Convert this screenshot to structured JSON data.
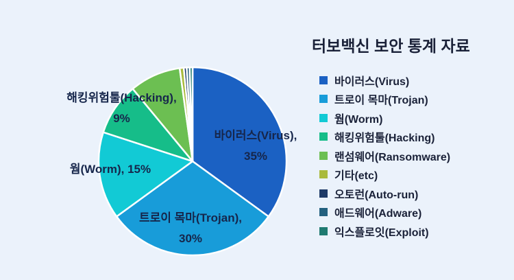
{
  "background_color": "#ebf2fb",
  "title": "터보백신 보안 통계 자료",
  "chart_data": {
    "type": "pie",
    "title": "터보백신 보안 통계 자료",
    "legend_position": "right",
    "start_angle_deg": 0,
    "direction": "clockwise",
    "categories": [
      "바이러스(Virus)",
      "트로이 목마(Trojan)",
      "웜(Worm)",
      "해킹위험툴(Hacking)",
      "랜섬웨어(Ransomware)",
      "기타(etc)",
      "오토런(Auto-run)",
      "애드웨어(Adware)",
      "익스플로잇(Exploit)"
    ],
    "values": [
      35,
      30,
      15,
      9,
      8.8,
      0.7,
      0.5,
      0.5,
      0.5
    ],
    "values_labeled_on_chart": {
      "바이러스(Virus)": 35,
      "트로이 목마(Trojan)": 30,
      "웜(Worm)": 15,
      "해킹위험툴(Hacking)": 9
    },
    "colors": [
      "#1b61c3",
      "#189cd9",
      "#12cad5",
      "#16bd89",
      "#6cbf52",
      "#a9ba3c",
      "#1e3a67",
      "#23607f",
      "#1f7a71"
    ],
    "slice_border_color": "#ffffff",
    "slice_labels": [
      {
        "slice": "virus",
        "line1": "바이러스(Virus),",
        "line2": "35%"
      },
      {
        "slice": "trojan",
        "line1": "트로이 목마(Trojan),",
        "line2": "30%"
      },
      {
        "slice": "worm",
        "line1": "웜(Worm), 15%",
        "line2": ""
      },
      {
        "slice": "hacking",
        "line1": "해킹위험툴(Hacking),",
        "line2": "9%"
      }
    ]
  },
  "legend": {
    "items": [
      {
        "label": "바이러스(Virus)",
        "color": "#1b61c3"
      },
      {
        "label": "트로이 목마(Trojan)",
        "color": "#189cd9"
      },
      {
        "label": "웜(Worm)",
        "color": "#12cad5"
      },
      {
        "label": "해킹위험툴(Hacking)",
        "color": "#16bd89"
      },
      {
        "label": "랜섬웨어(Ransomware)",
        "color": "#6cbf52"
      },
      {
        "label": "기타(etc)",
        "color": "#a9ba3c"
      },
      {
        "label": "오토런(Auto-run)",
        "color": "#1e3a67"
      },
      {
        "label": "애드웨어(Adware)",
        "color": "#23607f"
      },
      {
        "label": "익스플로잇(Exploit)",
        "color": "#1f7a71"
      }
    ]
  }
}
